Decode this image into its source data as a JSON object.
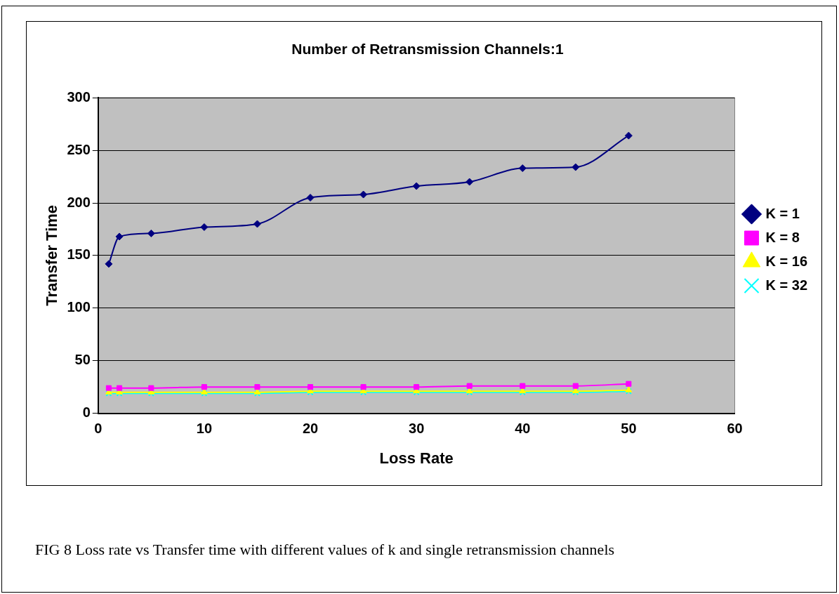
{
  "chart_data": {
    "type": "line",
    "title": "Number of Retransmission Channels:1",
    "xlabel": "Loss Rate",
    "ylabel": "Transfer Time",
    "x": [
      1,
      2,
      5,
      10,
      15,
      20,
      25,
      30,
      35,
      40,
      45,
      50
    ],
    "series": [
      {
        "name": "K = 1",
        "color": "#000080",
        "marker": "diamond",
        "values": [
          142,
          168,
          171,
          177,
          180,
          205,
          208,
          216,
          220,
          233,
          234,
          264
        ]
      },
      {
        "name": "K = 8",
        "color": "#ff00ff",
        "marker": "square",
        "values": [
          24,
          24,
          24,
          25,
          25,
          25,
          25,
          25,
          26,
          26,
          26,
          28
        ]
      },
      {
        "name": "K = 16",
        "color": "#ffff00",
        "marker": "triangle",
        "values": [
          20,
          20,
          20,
          20,
          20,
          21,
          21,
          21,
          21,
          21,
          21,
          22
        ]
      },
      {
        "name": "K = 32",
        "color": "#00ffff",
        "marker": "cross",
        "values": [
          19,
          19,
          19,
          19,
          19,
          20,
          20,
          20,
          20,
          20,
          20,
          21
        ]
      }
    ],
    "xlim": [
      0,
      60
    ],
    "xticks": [
      0,
      10,
      20,
      30,
      40,
      50,
      60
    ],
    "ylim": [
      0,
      300
    ],
    "yticks": [
      0,
      50,
      100,
      150,
      200,
      250,
      300
    ],
    "grid": "y",
    "legend": "right",
    "annotations": [
      "FIG 8 Loss rate vs Transfer time with different values of k and single retransmission channels"
    ]
  }
}
